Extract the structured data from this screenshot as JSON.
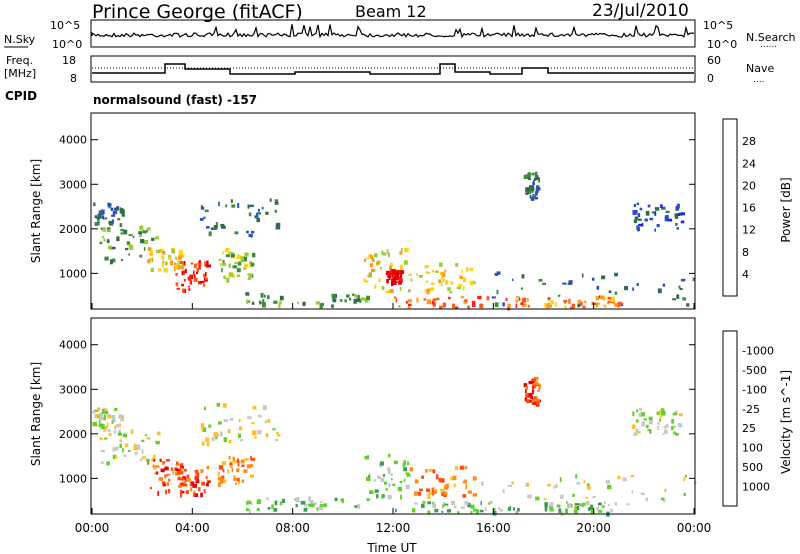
{
  "header": {
    "station": "Prince George (fitACF)",
    "beam": "Beam 12",
    "date": "23/Jul/2010"
  },
  "noise_panel": {
    "left_label": "N.Sky",
    "left_ticks": [
      "10^5",
      "10^0"
    ],
    "right_ticks": [
      "10^5",
      "10^0"
    ],
    "right_label": "N.Search",
    "right_marker": "......"
  },
  "freq_panel": {
    "left_label_1": "Freq.",
    "left_label_2": "[MHz]",
    "left_ticks": [
      "18",
      "8"
    ],
    "right_ticks": [
      "60",
      "0"
    ],
    "right_label": "Nave",
    "right_marker": "...."
  },
  "cpid": {
    "label": "CPID",
    "mode": "normalsound (fast) -157"
  },
  "chart_data": [
    {
      "type": "heatmap",
      "title": "",
      "xlabel": "",
      "ylabel": "Slant Range [km]",
      "ytick_labels": [
        "1000",
        "2000",
        "3000",
        "4000"
      ],
      "ylim": [
        200,
        4600
      ],
      "colorbar": {
        "label": "Power [dB]",
        "tick_labels": [
          "4",
          "8",
          "12",
          "16",
          "20",
          "24",
          "28"
        ],
        "range": [
          0,
          32
        ],
        "colors": [
          "#1e1eff",
          "#2a4cc6",
          "#2f6c4a",
          "#3b8e3b",
          "#9acd32",
          "#ffd21a",
          "#ff9a1a",
          "#ff5a14",
          "#ff1e1e",
          "#e50000"
        ]
      },
      "echo_regions": [
        {
          "t_start": 0.0,
          "t_end": 1.2,
          "r_min": 2100,
          "r_max": 2600,
          "level": 2
        },
        {
          "t_start": 0.3,
          "t_end": 2.6,
          "r_min": 1300,
          "r_max": 2100,
          "level": 3
        },
        {
          "t_start": 2.2,
          "t_end": 3.6,
          "r_min": 1100,
          "r_max": 1600,
          "level": 5
        },
        {
          "t_start": 3.3,
          "t_end": 4.6,
          "r_min": 650,
          "r_max": 1300,
          "level": 8
        },
        {
          "t_start": 4.3,
          "t_end": 7.4,
          "r_min": 1800,
          "r_max": 2700,
          "level": 2
        },
        {
          "t_start": 5.0,
          "t_end": 6.4,
          "r_min": 900,
          "r_max": 1600,
          "level": 4
        },
        {
          "t_start": 6.0,
          "t_end": 11.0,
          "r_min": 300,
          "r_max": 600,
          "level": 3
        },
        {
          "t_start": 10.8,
          "t_end": 12.6,
          "r_min": 600,
          "r_max": 1600,
          "level": 5
        },
        {
          "t_start": 11.7,
          "t_end": 12.3,
          "r_min": 800,
          "r_max": 1100,
          "level": 9
        },
        {
          "t_start": 12.5,
          "t_end": 15.2,
          "r_min": 600,
          "r_max": 1300,
          "level": 5
        },
        {
          "t_start": 12.0,
          "t_end": 17.5,
          "r_min": 250,
          "r_max": 500,
          "level": 7
        },
        {
          "t_start": 17.2,
          "t_end": 17.8,
          "r_min": 2700,
          "r_max": 3300,
          "level": 2
        },
        {
          "t_start": 15.5,
          "t_end": 24.0,
          "r_min": 300,
          "r_max": 1100,
          "level": 2
        },
        {
          "t_start": 18.0,
          "t_end": 21.0,
          "r_min": 250,
          "r_max": 500,
          "level": 6
        },
        {
          "t_start": 21.5,
          "t_end": 23.5,
          "r_min": 2000,
          "r_max": 2600,
          "level": 1
        }
      ]
    },
    {
      "type": "heatmap",
      "title": "",
      "xlabel": "Time UT",
      "ylabel": "Slant Range [km]",
      "xtick_labels": [
        "00:00",
        "04:00",
        "08:00",
        "12:00",
        "16:00",
        "20:00",
        "00:00"
      ],
      "ytick_labels": [
        "1000",
        "2000",
        "3000",
        "4000"
      ],
      "ylim": [
        200,
        4600
      ],
      "colorbar": {
        "label": "Velocity [m s^-1]",
        "tick_labels": [
          "1000",
          "500",
          "100",
          "25",
          "-25",
          "-100",
          "-500",
          "-1000"
        ],
        "colors": [
          "#2b2bd6",
          "#3a6ea8",
          "#3b9a5a",
          "#5fd02a",
          "#c8c8c8",
          "#ffbf2a",
          "#ff8a14",
          "#ff4a14",
          "#e60000"
        ]
      },
      "echo_regions": [
        {
          "t_start": 0.0,
          "t_end": 1.2,
          "r_min": 2100,
          "r_max": 2600,
          "level": 4
        },
        {
          "t_start": 0.3,
          "t_end": 2.6,
          "r_min": 1300,
          "r_max": 2100,
          "level": 4
        },
        {
          "t_start": 2.2,
          "t_end": 3.6,
          "r_min": 700,
          "r_max": 1500,
          "level": 7
        },
        {
          "t_start": 3.3,
          "t_end": 4.6,
          "r_min": 650,
          "r_max": 1300,
          "level": 7
        },
        {
          "t_start": 4.3,
          "t_end": 7.4,
          "r_min": 1800,
          "r_max": 2700,
          "level": 4
        },
        {
          "t_start": 5.0,
          "t_end": 6.4,
          "r_min": 900,
          "r_max": 1600,
          "level": 6
        },
        {
          "t_start": 6.0,
          "t_end": 11.0,
          "r_min": 300,
          "r_max": 600,
          "level": 3
        },
        {
          "t_start": 10.8,
          "t_end": 12.6,
          "r_min": 600,
          "r_max": 1600,
          "level": 3
        },
        {
          "t_start": 12.5,
          "t_end": 15.2,
          "r_min": 600,
          "r_max": 1300,
          "level": 6
        },
        {
          "t_start": 12.0,
          "t_end": 17.5,
          "r_min": 250,
          "r_max": 500,
          "level": 3
        },
        {
          "t_start": 17.2,
          "t_end": 17.8,
          "r_min": 2700,
          "r_max": 3300,
          "level": 7
        },
        {
          "t_start": 15.5,
          "t_end": 24.0,
          "r_min": 400,
          "r_max": 1100,
          "level": 4
        },
        {
          "t_start": 18.0,
          "t_end": 21.0,
          "r_min": 250,
          "r_max": 500,
          "level": 3
        },
        {
          "t_start": 21.5,
          "t_end": 23.5,
          "r_min": 2000,
          "r_max": 2600,
          "level": 4
        }
      ]
    }
  ]
}
